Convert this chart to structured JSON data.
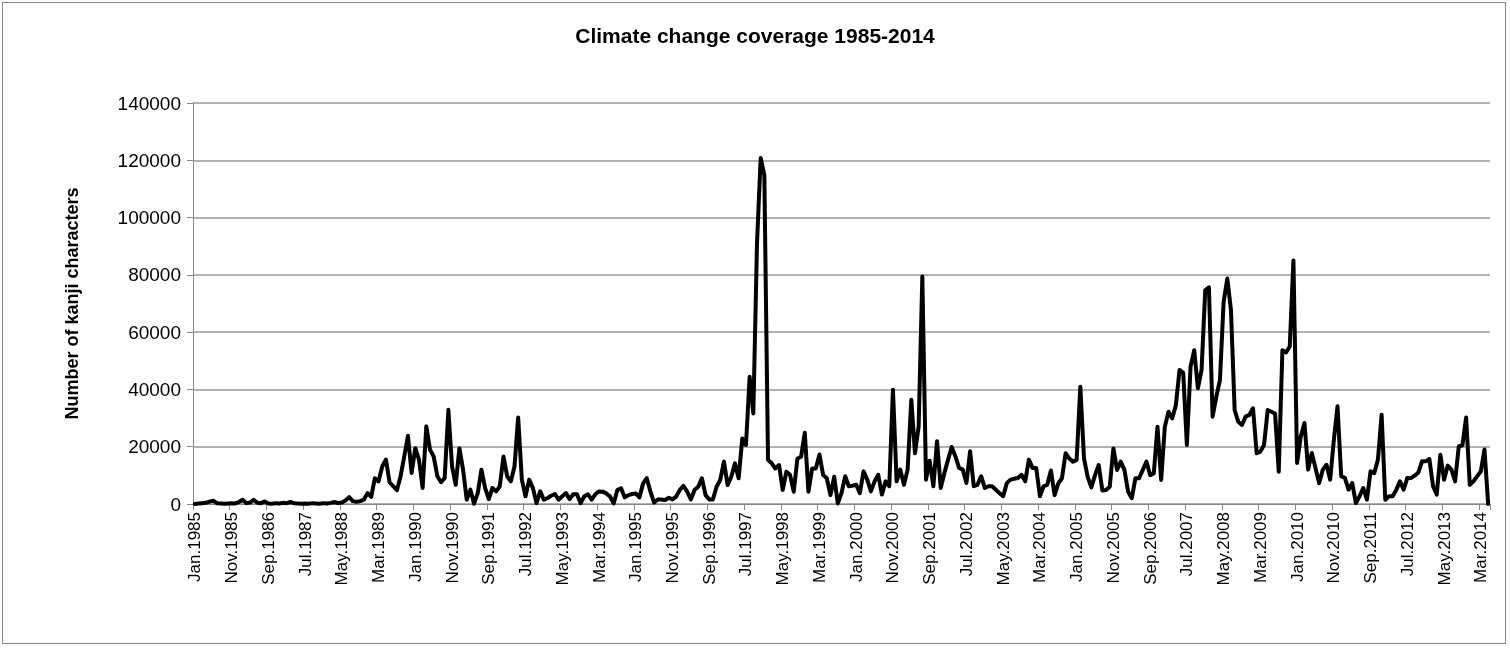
{
  "chart_data": {
    "type": "line",
    "title": "Climate change coverage 1985-2014",
    "ylabel": "Number of kanji characters",
    "categories": [
      "Jan.1985",
      null,
      null,
      null,
      null,
      null,
      null,
      null,
      null,
      null,
      "Nov.1985",
      null,
      null,
      null,
      null,
      null,
      null,
      null,
      null,
      null,
      "Sep.1986",
      null,
      null,
      null,
      null,
      null,
      null,
      null,
      null,
      null,
      "Jul.1987",
      null,
      null,
      null,
      null,
      null,
      null,
      null,
      null,
      null,
      "May.1988",
      null,
      null,
      null,
      null,
      null,
      null,
      null,
      null,
      null,
      "Mar.1989",
      null,
      null,
      null,
      null,
      null,
      null,
      null,
      null,
      null,
      "Jan.1990",
      null,
      null,
      null,
      null,
      null,
      null,
      null,
      null,
      null,
      "Nov.1990",
      null,
      null,
      null,
      null,
      null,
      null,
      null,
      null,
      null,
      "Sep.1991",
      null,
      null,
      null,
      null,
      null,
      null,
      null,
      null,
      null,
      "Jul.1992",
      null,
      null,
      null,
      null,
      null,
      null,
      null,
      null,
      null,
      "May.1993",
      null,
      null,
      null,
      null,
      null,
      null,
      null,
      null,
      null,
      "Mar.1994",
      null,
      null,
      null,
      null,
      null,
      null,
      null,
      null,
      null,
      "Jan.1995",
      null,
      null,
      null,
      null,
      null,
      null,
      null,
      null,
      null,
      "Nov.1995",
      null,
      null,
      null,
      null,
      null,
      null,
      null,
      null,
      null,
      "Sep.1996",
      null,
      null,
      null,
      null,
      null,
      null,
      null,
      null,
      null,
      "Jul.1997",
      null,
      null,
      null,
      null,
      null,
      null,
      null,
      null,
      null,
      "May.1998",
      null,
      null,
      null,
      null,
      null,
      null,
      null,
      null,
      null,
      "Mar.1999",
      null,
      null,
      null,
      null,
      null,
      null,
      null,
      null,
      null,
      "Jan.2000",
      null,
      null,
      null,
      null,
      null,
      null,
      null,
      null,
      null,
      "Nov.2000",
      null,
      null,
      null,
      null,
      null,
      null,
      null,
      null,
      null,
      "Sep.2001",
      null,
      null,
      null,
      null,
      null,
      null,
      null,
      null,
      null,
      "Jul.2002",
      null,
      null,
      null,
      null,
      null,
      null,
      null,
      null,
      null,
      "May.2003",
      null,
      null,
      null,
      null,
      null,
      null,
      null,
      null,
      null,
      "Mar.2004",
      null,
      null,
      null,
      null,
      null,
      null,
      null,
      null,
      null,
      "Jan.2005",
      null,
      null,
      null,
      null,
      null,
      null,
      null,
      null,
      null,
      "Nov.2005",
      null,
      null,
      null,
      null,
      null,
      null,
      null,
      null,
      null,
      "Sep.2006",
      null,
      null,
      null,
      null,
      null,
      null,
      null,
      null,
      null,
      "Jul.2007",
      null,
      null,
      null,
      null,
      null,
      null,
      null,
      null,
      null,
      "May.2008",
      null,
      null,
      null,
      null,
      null,
      null,
      null,
      null,
      null,
      "Mar.2009",
      null,
      null,
      null,
      null,
      null,
      null,
      null,
      null,
      null,
      "Jan.2010",
      null,
      null,
      null,
      null,
      null,
      null,
      null,
      null,
      null,
      "Nov.2010",
      null,
      null,
      null,
      null,
      null,
      null,
      null,
      null,
      null,
      "Sep.2011",
      null,
      null,
      null,
      null,
      null,
      null,
      null,
      null,
      null,
      "Jul.2012",
      null,
      null,
      null,
      null,
      null,
      null,
      null,
      null,
      null,
      "May.2013",
      null,
      null,
      null,
      null,
      null,
      null,
      null,
      null,
      null,
      "Mar.2014",
      null,
      null
    ],
    "series": [
      {
        "color": "#000000",
        "values": [
          0,
          200,
          300,
          400,
          800,
          1200,
          300,
          200,
          100,
          200,
          300,
          200,
          700,
          1500,
          300,
          500,
          1500,
          400,
          300,
          900,
          200,
          100,
          300,
          200,
          400,
          300,
          700,
          300,
          200,
          100,
          200,
          100,
          300,
          200,
          100,
          300,
          200,
          400,
          700,
          300,
          500,
          1200,
          2400,
          1000,
          800,
          1000,
          1500,
          3800,
          2500,
          9000,
          7900,
          13100,
          15500,
          7600,
          6200,
          4800,
          9700,
          16600,
          23800,
          10800,
          19500,
          15500,
          5600,
          27100,
          19000,
          16600,
          9700,
          7600,
          9000,
          32900,
          13100,
          6700,
          19500,
          12000,
          1500,
          5000,
          100,
          3800,
          12000,
          5600,
          1700,
          5600,
          4400,
          6200,
          16600,
          9700,
          7900,
          13100,
          30200,
          8500,
          2700,
          8500,
          5600,
          300,
          4400,
          1500,
          2100,
          2900,
          3500,
          1500,
          2700,
          3800,
          1700,
          3400,
          3400,
          300,
          2700,
          3400,
          1500,
          3400,
          4400,
          4300,
          3700,
          2600,
          200,
          4900,
          5500,
          2300,
          3100,
          3500,
          3700,
          2300,
          7200,
          9000,
          4300,
          500,
          1600,
          1600,
          1400,
          2200,
          1600,
          2600,
          4900,
          6300,
          4300,
          1600,
          4900,
          6000,
          9000,
          3100,
          1600,
          1600,
          6000,
          8400,
          14800,
          6600,
          9500,
          14200,
          9000,
          22900,
          20600,
          44400,
          31600,
          90900,
          120800,
          114800,
          15400,
          14200,
          12400,
          13600,
          4900,
          11300,
          10100,
          4300,
          15900,
          16500,
          24900,
          4300,
          12400,
          12400,
          17300,
          10100,
          9000,
          3100,
          9500,
          200,
          3800,
          9700,
          6200,
          6400,
          6700,
          3800,
          11400,
          8500,
          4400,
          7900,
          10200,
          3300,
          7900,
          6200,
          39900,
          7900,
          12000,
          6700,
          12000,
          36400,
          17700,
          27100,
          79400,
          8500,
          15100,
          6200,
          21900,
          5600,
          10800,
          15500,
          19900,
          16600,
          12600,
          12000,
          7300,
          18400,
          6200,
          6700,
          9700,
          5600,
          6200,
          6200,
          5000,
          3800,
          2700,
          7300,
          8500,
          8800,
          9100,
          10200,
          7900,
          15500,
          12600,
          12600,
          2700,
          6200,
          6700,
          11700,
          3100,
          7200,
          9000,
          17700,
          15900,
          14800,
          15400,
          40900,
          15900,
          9500,
          5800,
          10100,
          13600,
          4700,
          4900,
          6000,
          19400,
          11900,
          14800,
          11900,
          4300,
          2000,
          9000,
          9000,
          11900,
          14800,
          10100,
          10700,
          27000,
          8400,
          27000,
          32200,
          29900,
          34500,
          46800,
          45800,
          20600,
          47900,
          53700,
          40400,
          46800,
          74700,
          75600,
          30500,
          37400,
          43300,
          70600,
          78700,
          67700,
          32800,
          28700,
          27600,
          30500,
          31100,
          33400,
          17700,
          18300,
          20600,
          32800,
          32200,
          31600,
          11300,
          53700,
          52900,
          55000,
          85000,
          14300,
          23600,
          28300,
          12000,
          17800,
          12600,
          7300,
          12000,
          13700,
          8500,
          22400,
          34100,
          9700,
          9100,
          5000,
          7300,
          300,
          2700,
          5600,
          1500,
          11400,
          10800,
          15500,
          31200,
          1500,
          2700,
          2700,
          5000,
          7900,
          5000,
          9100,
          9100,
          9900,
          11000,
          14900,
          14900,
          15700,
          6200,
          3300,
          17200,
          8500,
          13400,
          12000,
          7900,
          20100,
          20500,
          30200,
          6700,
          7900,
          9700,
          11400,
          19000,
          0
        ]
      }
    ],
    "ylim": [
      0,
      140000
    ],
    "yticks": [
      0,
      20000,
      40000,
      60000,
      80000,
      100000,
      120000,
      140000
    ],
    "grid": "y",
    "marker": "none",
    "line_style": "solid"
  }
}
